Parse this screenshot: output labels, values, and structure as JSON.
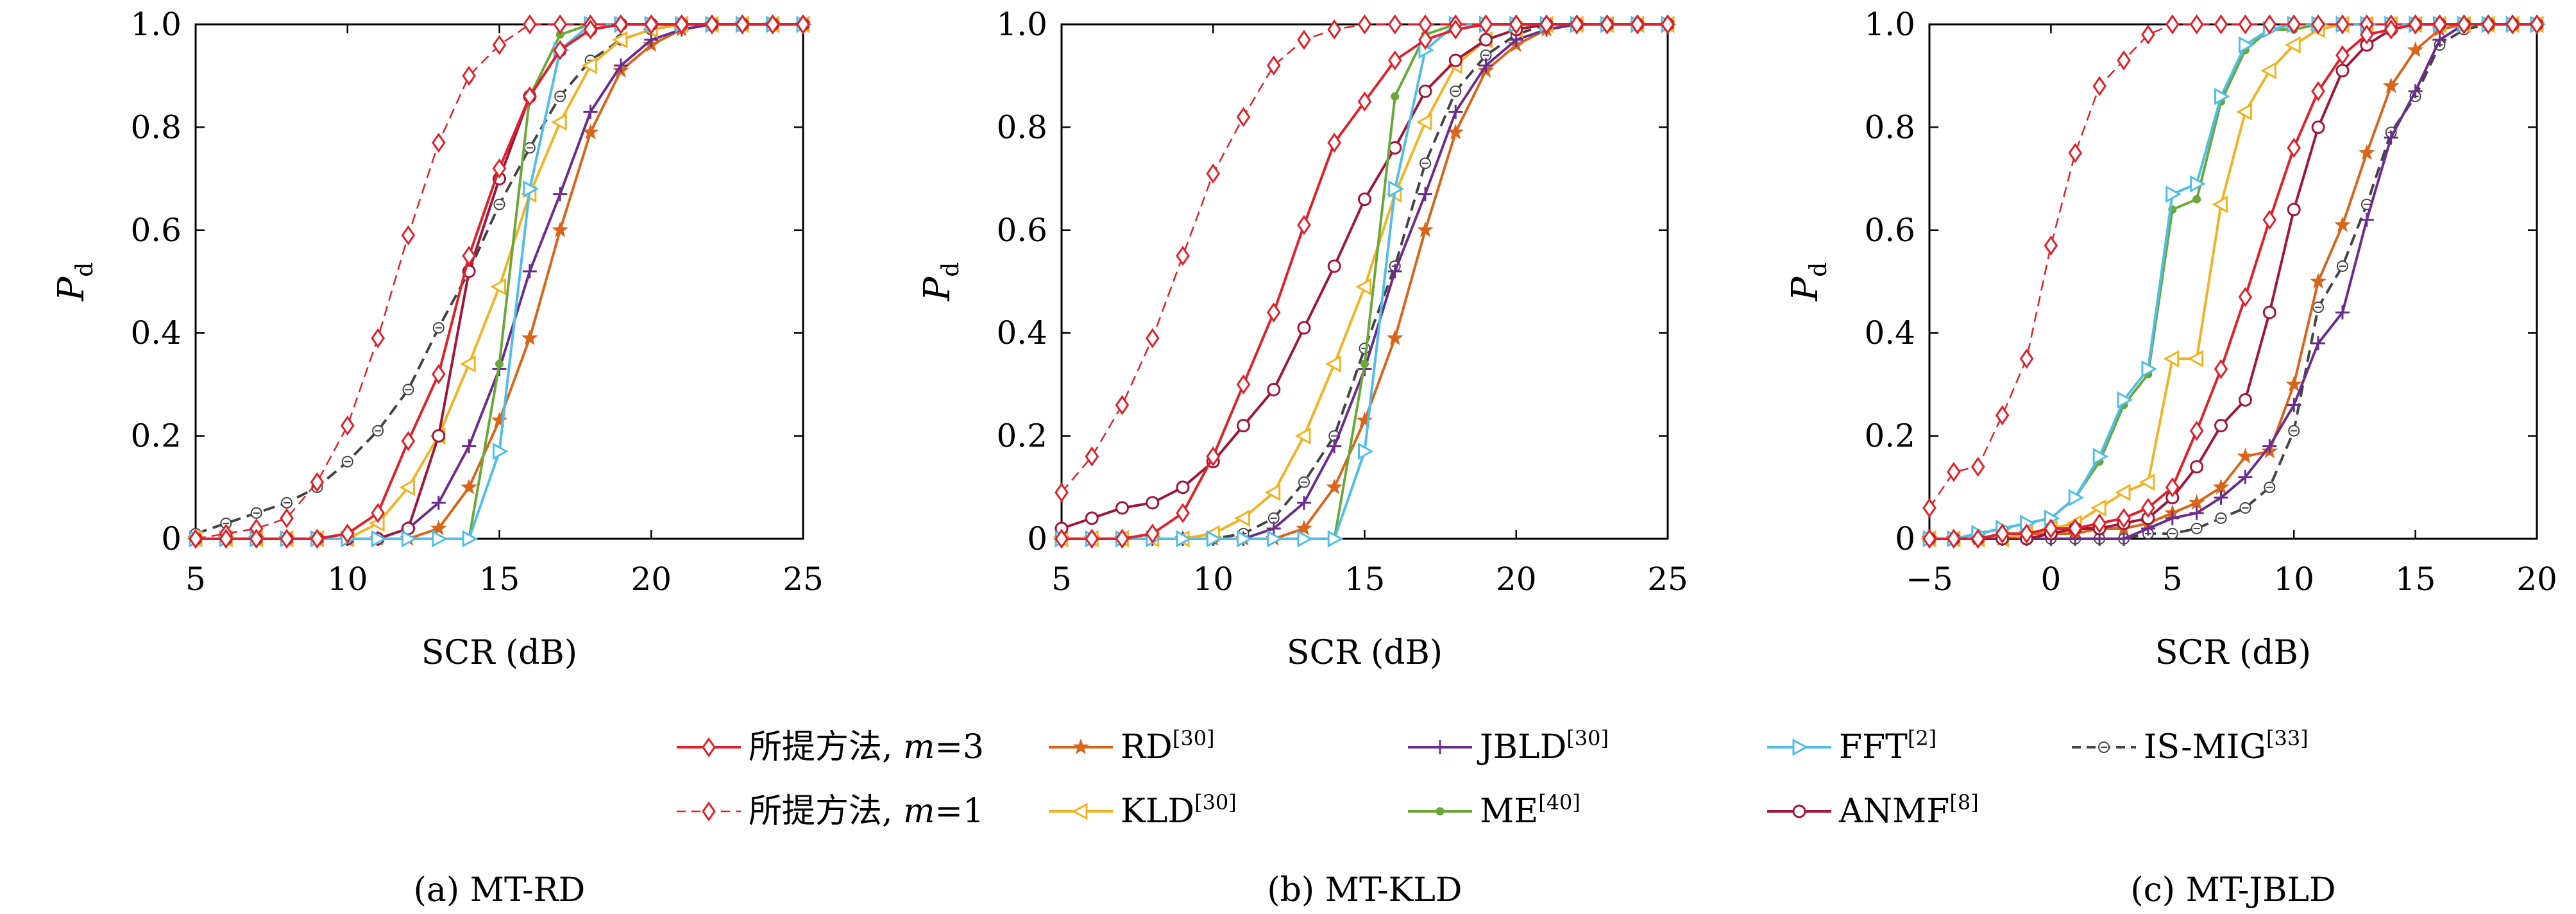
{
  "colors": {
    "proposed_m3": "#e0202a",
    "proposed_m1": "#e0202a",
    "rd": "#d9651a",
    "kld": "#f0b323",
    "jbld": "#6b2d8c",
    "me": "#6aa83a",
    "fft": "#4fbfe8",
    "anmf": "#a0163a",
    "ismig": "#444444"
  },
  "legend": {
    "entries": [
      {
        "key": "proposed_m3",
        "label": "所提方法, m=3",
        "marker": "diamond",
        "dash": "none"
      },
      {
        "key": "rd",
        "label": "RD",
        "ref": "[30]",
        "marker": "star",
        "dash": "none"
      },
      {
        "key": "jbld",
        "label": "JBLD",
        "ref": "[30]",
        "marker": "plus",
        "dash": "none"
      },
      {
        "key": "fft",
        "label": "FFT",
        "ref": "[2]",
        "marker": "triangle-right",
        "dash": "none"
      },
      {
        "key": "ismig",
        "label": "IS-MIG",
        "ref": "[33]",
        "marker": "circle-small",
        "dash": "dash"
      },
      {
        "key": "proposed_m1",
        "label": "所提方法, m=1",
        "marker": "diamond",
        "dash": "dash"
      },
      {
        "key": "kld",
        "label": "KLD",
        "ref": "[30]",
        "marker": "triangle-left",
        "dash": "none"
      },
      {
        "key": "me",
        "label": "ME",
        "ref": "[40]",
        "marker": "dot",
        "dash": "none"
      },
      {
        "key": "anmf",
        "label": "ANMF",
        "ref": "[8]",
        "marker": "circle",
        "dash": "none"
      }
    ]
  },
  "chart_data": [
    {
      "type": "line",
      "caption": "(a) MT-RD",
      "xlabel": "SCR (dB)",
      "ylabel": "P",
      "ylabel_sub": "d",
      "xlim": [
        5,
        25
      ],
      "ylim": [
        0,
        1
      ],
      "xticks": [
        5,
        10,
        15,
        20,
        25
      ],
      "yticks": [
        "0",
        "0.2",
        "0.4",
        "0.6",
        "0.8",
        "1.0"
      ],
      "x": [
        5,
        6,
        7,
        8,
        9,
        10,
        11,
        12,
        13,
        14,
        15,
        16,
        17,
        18,
        19,
        20,
        21,
        22,
        23,
        24,
        25
      ],
      "series": [
        {
          "key": "proposed_m3",
          "values": [
            0,
            0,
            0,
            0,
            0,
            0.01,
            0.05,
            0.19,
            0.32,
            0.55,
            0.72,
            0.86,
            0.95,
            0.99,
            1,
            1,
            1,
            1,
            1,
            1,
            1
          ]
        },
        {
          "key": "proposed_m1",
          "values": [
            0,
            0.01,
            0.02,
            0.04,
            0.11,
            0.22,
            0.39,
            0.59,
            0.77,
            0.9,
            0.96,
            1,
            1,
            1,
            1,
            1,
            1,
            1,
            1,
            1,
            1
          ]
        },
        {
          "key": "rd",
          "values": [
            0,
            0,
            0,
            0,
            0,
            0,
            0,
            0,
            0.02,
            0.1,
            0.23,
            0.39,
            0.6,
            0.79,
            0.91,
            0.96,
            0.99,
            1,
            1,
            1,
            1
          ]
        },
        {
          "key": "kld",
          "values": [
            0,
            0,
            0,
            0,
            0,
            0,
            0.03,
            0.1,
            0.2,
            0.34,
            0.49,
            0.67,
            0.81,
            0.92,
            0.97,
            0.99,
            1,
            1,
            1,
            1,
            1
          ]
        },
        {
          "key": "jbld",
          "values": [
            0,
            0,
            0,
            0,
            0,
            0,
            0,
            0.02,
            0.07,
            0.18,
            0.33,
            0.52,
            0.67,
            0.83,
            0.92,
            0.97,
            0.99,
            1,
            1,
            1,
            1
          ]
        },
        {
          "key": "me",
          "values": [
            0,
            0,
            0,
            0,
            0,
            0,
            0,
            0,
            0,
            0,
            0.34,
            0.86,
            0.98,
            1,
            1,
            1,
            1,
            1,
            1,
            1,
            1
          ]
        },
        {
          "key": "fft",
          "values": [
            0,
            0,
            0,
            0,
            0,
            0,
            0,
            0,
            0,
            0,
            0.17,
            0.68,
            0.95,
            1,
            1,
            1,
            1,
            1,
            1,
            1,
            1
          ]
        },
        {
          "key": "anmf",
          "values": [
            0,
            0,
            0,
            0,
            0,
            0,
            0,
            0.02,
            0.2,
            0.52,
            0.7,
            0.86,
            0.95,
            0.99,
            1,
            1,
            1,
            1,
            1,
            1,
            1
          ]
        },
        {
          "key": "ismig",
          "values": [
            0.01,
            0.03,
            0.05,
            0.07,
            0.1,
            0.15,
            0.21,
            0.29,
            0.41,
            0.52,
            0.65,
            0.76,
            0.86,
            0.93,
            0.97,
            0.99,
            1,
            1,
            1,
            1,
            1
          ]
        }
      ]
    },
    {
      "type": "line",
      "caption": "(b) MT-KLD",
      "xlabel": "SCR (dB)",
      "ylabel": "P",
      "ylabel_sub": "d",
      "xlim": [
        5,
        25
      ],
      "ylim": [
        0,
        1
      ],
      "xticks": [
        5,
        10,
        15,
        20,
        25
      ],
      "yticks": [
        "0",
        "0.2",
        "0.4",
        "0.6",
        "0.8",
        "1.0"
      ],
      "x": [
        5,
        6,
        7,
        8,
        9,
        10,
        11,
        12,
        13,
        14,
        15,
        16,
        17,
        18,
        19,
        20,
        21,
        22,
        23,
        24,
        25
      ],
      "series": [
        {
          "key": "proposed_m3",
          "values": [
            0,
            0,
            0,
            0.01,
            0.05,
            0.16,
            0.3,
            0.44,
            0.61,
            0.77,
            0.85,
            0.93,
            0.97,
            0.99,
            1,
            1,
            1,
            1,
            1,
            1,
            1
          ]
        },
        {
          "key": "proposed_m1",
          "values": [
            0.09,
            0.16,
            0.26,
            0.39,
            0.55,
            0.71,
            0.82,
            0.92,
            0.97,
            0.99,
            1,
            1,
            1,
            1,
            1,
            1,
            1,
            1,
            1,
            1,
            1
          ]
        },
        {
          "key": "rd",
          "values": [
            0,
            0,
            0,
            0,
            0,
            0,
            0,
            0,
            0.02,
            0.1,
            0.23,
            0.39,
            0.6,
            0.79,
            0.91,
            0.96,
            0.99,
            1,
            1,
            1,
            1
          ]
        },
        {
          "key": "kld",
          "values": [
            0,
            0,
            0,
            0,
            0,
            0.01,
            0.04,
            0.09,
            0.2,
            0.34,
            0.49,
            0.67,
            0.81,
            0.92,
            0.97,
            0.99,
            1,
            1,
            1,
            1,
            1
          ]
        },
        {
          "key": "jbld",
          "values": [
            0,
            0,
            0,
            0,
            0,
            0,
            0,
            0.02,
            0.07,
            0.18,
            0.33,
            0.52,
            0.67,
            0.83,
            0.92,
            0.97,
            0.99,
            1,
            1,
            1,
            1
          ]
        },
        {
          "key": "me",
          "values": [
            0,
            0,
            0,
            0,
            0,
            0,
            0,
            0,
            0,
            0,
            0.34,
            0.86,
            0.98,
            1,
            1,
            1,
            1,
            1,
            1,
            1,
            1
          ]
        },
        {
          "key": "fft",
          "values": [
            0,
            0,
            0,
            0,
            0,
            0,
            0,
            0,
            0,
            0,
            0.17,
            0.68,
            0.95,
            1,
            1,
            1,
            1,
            1,
            1,
            1,
            1
          ]
        },
        {
          "key": "anmf",
          "values": [
            0.02,
            0.04,
            0.06,
            0.07,
            0.1,
            0.15,
            0.22,
            0.29,
            0.41,
            0.53,
            0.66,
            0.76,
            0.87,
            0.93,
            0.97,
            0.99,
            1,
            1,
            1,
            1,
            1
          ]
        },
        {
          "key": "ismig",
          "values": [
            0,
            0,
            0,
            0,
            0,
            0,
            0.01,
            0.04,
            0.11,
            0.2,
            0.37,
            0.53,
            0.73,
            0.87,
            0.94,
            0.98,
            1,
            1,
            1,
            1,
            1
          ]
        }
      ]
    },
    {
      "type": "line",
      "caption": "(c) MT-JBLD",
      "xlabel": "SCR (dB)",
      "ylabel": "P",
      "ylabel_sub": "d",
      "xlim": [
        -5,
        20
      ],
      "ylim": [
        0,
        1
      ],
      "xticks": [
        -5,
        0,
        5,
        10,
        15,
        20
      ],
      "xtick_labels": [
        "−5",
        "0",
        "5",
        "10",
        "15",
        "20"
      ],
      "yticks": [
        "0",
        "0.2",
        "0.4",
        "0.6",
        "0.8",
        "1.0"
      ],
      "x": [
        -5,
        -4,
        -3,
        -2,
        -1,
        0,
        1,
        2,
        3,
        4,
        5,
        6,
        7,
        8,
        9,
        10,
        11,
        12,
        13,
        14,
        15,
        16,
        17,
        18,
        19,
        20
      ],
      "series": [
        {
          "key": "proposed_m3",
          "values": [
            0,
            0,
            0,
            0.01,
            0.01,
            0.02,
            0.02,
            0.03,
            0.04,
            0.06,
            0.1,
            0.21,
            0.33,
            0.47,
            0.62,
            0.76,
            0.87,
            0.94,
            0.98,
            0.99,
            1,
            1,
            1,
            1,
            1,
            1
          ]
        },
        {
          "key": "proposed_m1",
          "values": [
            0.06,
            0.13,
            0.14,
            0.24,
            0.35,
            0.57,
            0.75,
            0.88,
            0.93,
            0.98,
            1,
            1,
            1,
            1,
            1,
            1,
            1,
            1,
            1,
            1,
            1,
            1,
            1,
            1,
            1,
            1
          ]
        },
        {
          "key": "rd",
          "values": [
            0,
            0,
            0,
            0,
            0.01,
            0.01,
            0.01,
            0.02,
            0.02,
            0.03,
            0.05,
            0.07,
            0.1,
            0.16,
            0.17,
            0.3,
            0.5,
            0.61,
            0.75,
            0.88,
            0.95,
            0.99,
            1,
            1,
            1,
            1
          ]
        },
        {
          "key": "kld",
          "values": [
            0,
            0,
            0,
            0,
            0.01,
            0.02,
            0.03,
            0.06,
            0.09,
            0.11,
            0.35,
            0.35,
            0.65,
            0.83,
            0.91,
            0.96,
            0.99,
            1,
            1,
            1,
            1,
            1,
            1,
            1,
            1,
            1
          ]
        },
        {
          "key": "jbld",
          "values": [
            0,
            0,
            0,
            0,
            0,
            0,
            0,
            0,
            0,
            0.02,
            0.04,
            0.05,
            0.08,
            0.12,
            0.18,
            0.26,
            0.38,
            0.44,
            0.62,
            0.78,
            0.87,
            0.97,
            1,
            1,
            1,
            1
          ]
        },
        {
          "key": "me",
          "values": [
            0,
            0,
            0.01,
            0.02,
            0.03,
            0.04,
            0.08,
            0.15,
            0.26,
            0.32,
            0.64,
            0.66,
            0.85,
            0.95,
            0.99,
            0.99,
            1,
            1,
            1,
            1,
            1,
            1,
            1,
            1,
            1,
            1
          ]
        },
        {
          "key": "fft",
          "values": [
            0,
            0,
            0.01,
            0.02,
            0.03,
            0.04,
            0.08,
            0.16,
            0.27,
            0.33,
            0.67,
            0.69,
            0.86,
            0.96,
            0.99,
            1,
            1,
            1,
            1,
            1,
            1,
            1,
            1,
            1,
            1,
            1
          ]
        },
        {
          "key": "anmf",
          "values": [
            0,
            0,
            0,
            0,
            0,
            0.01,
            0.02,
            0.02,
            0.03,
            0.04,
            0.08,
            0.14,
            0.22,
            0.27,
            0.44,
            0.64,
            0.8,
            0.91,
            0.96,
            0.99,
            1,
            1,
            1,
            1,
            1,
            1
          ]
        },
        {
          "key": "ismig",
          "values": [
            0,
            0,
            0,
            0,
            0,
            0,
            0,
            0,
            0,
            0.01,
            0.01,
            0.02,
            0.04,
            0.06,
            0.1,
            0.21,
            0.45,
            0.53,
            0.65,
            0.79,
            0.86,
            0.96,
            0.99,
            1,
            1,
            1
          ]
        }
      ]
    }
  ]
}
